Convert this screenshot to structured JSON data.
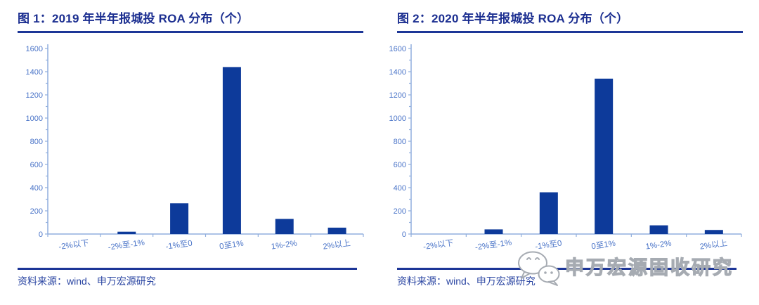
{
  "figures": [
    {
      "title": "图 1：2019 年半年报城投 ROA 分布（个）",
      "source": "资料来源：wind、申万宏源研究"
    },
    {
      "title": "图 2：2020 年半年报城投 ROA 分布（个）",
      "source": "资料来源：wind、申万宏源研究"
    }
  ],
  "chart_data": [
    {
      "type": "bar",
      "title": "2019 年半年报城投 ROA 分布（个）",
      "categories": [
        "-2%以下",
        "-2%至-1%",
        "-1%至0",
        "0至1%",
        "1%-2%",
        "2%以上"
      ],
      "values": [
        0,
        20,
        265,
        1440,
        130,
        55
      ],
      "xlabel": "",
      "ylabel": "",
      "ylim": [
        0,
        1600
      ],
      "ytick_step": 200,
      "ytick_minor_step": 100,
      "grid": false,
      "legend_position": "none"
    },
    {
      "type": "bar",
      "title": "2020 年半年报城投 ROA 分布（个）",
      "categories": [
        "-2%以下",
        "-2%至-1%",
        "-1%至0",
        "0至1%",
        "1%-2%",
        "2%以上"
      ],
      "values": [
        0,
        40,
        360,
        1340,
        75,
        35
      ],
      "xlabel": "",
      "ylabel": "",
      "ylim": [
        0,
        1600
      ],
      "ytick_step": 200,
      "ytick_minor_step": 100,
      "grid": false,
      "legend_position": "none"
    }
  ],
  "watermark": {
    "text": "申万宏源固收研究",
    "icon": "wechat-icon"
  },
  "colors": {
    "bar": "#0d3a9a",
    "axis": "#90aedd",
    "tick_label": "#4a74c8",
    "title": "#1b2e90",
    "rule": "#1d3697",
    "source": "#2a45a2",
    "watermark": "#a6abb2"
  }
}
